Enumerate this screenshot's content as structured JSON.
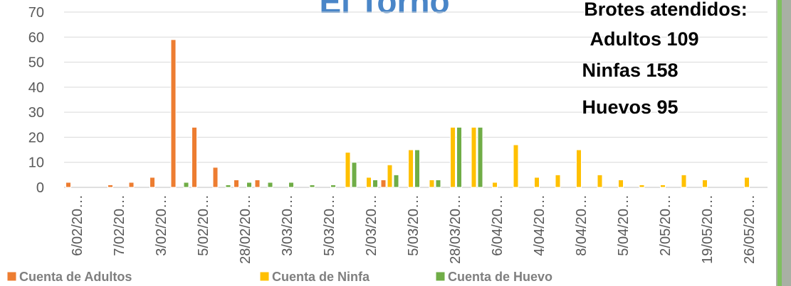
{
  "chart_data": {
    "type": "bar",
    "title": "El Torno",
    "annotations": [
      "Brotes atendidos:",
      "Adultos 109",
      "Ninfas 158",
      "Huevos 95"
    ],
    "categories": [
      "6/02/20…",
      null,
      "7/02/20…",
      null,
      "3/02/20…",
      null,
      "5/02/20…",
      null,
      "28/02/20…",
      null,
      "3/03/20…",
      null,
      "5/03/20…",
      null,
      "2/03/20…",
      null,
      "5/03/20…",
      null,
      "28/03/20…",
      null,
      "6/04/20…",
      null,
      "4/04/20…",
      null,
      "8/04/20…",
      null,
      "5/04/20…",
      null,
      "2/05/20…",
      null,
      "19/05/20…",
      null,
      "26/05/20…"
    ],
    "series": [
      {
        "name": "Cuenta de Adultos",
        "color": "#ed7d31",
        "values": [
          2,
          null,
          1,
          2,
          4,
          59,
          24,
          8,
          3,
          3,
          null,
          null,
          null,
          null,
          null,
          3,
          null,
          null,
          null,
          null,
          null,
          null,
          null,
          null,
          null,
          null,
          null,
          null,
          null,
          null,
          null,
          null,
          null
        ]
      },
      {
        "name": "Cuenta de Ninfa",
        "color": "#ffc000",
        "values": [
          null,
          null,
          null,
          null,
          null,
          null,
          null,
          null,
          null,
          null,
          null,
          null,
          null,
          14,
          4,
          9,
          15,
          3,
          24,
          24,
          2,
          17,
          4,
          5,
          15,
          5,
          3,
          1,
          1,
          5,
          3,
          null,
          4
        ]
      },
      {
        "name": "Cuenta de Huevo",
        "color": "#70ad47",
        "values": [
          null,
          null,
          null,
          null,
          null,
          2,
          null,
          1,
          2,
          2,
          2,
          1,
          1,
          10,
          3,
          5,
          15,
          3,
          24,
          24,
          null,
          null,
          null,
          null,
          null,
          null,
          null,
          null,
          null,
          null,
          null,
          null,
          null
        ]
      }
    ],
    "ylim": [
      0,
      70
    ],
    "yticks": [
      0,
      10,
      20,
      30,
      40,
      50,
      60,
      70
    ],
    "grid": true,
    "legend": "bottom"
  }
}
